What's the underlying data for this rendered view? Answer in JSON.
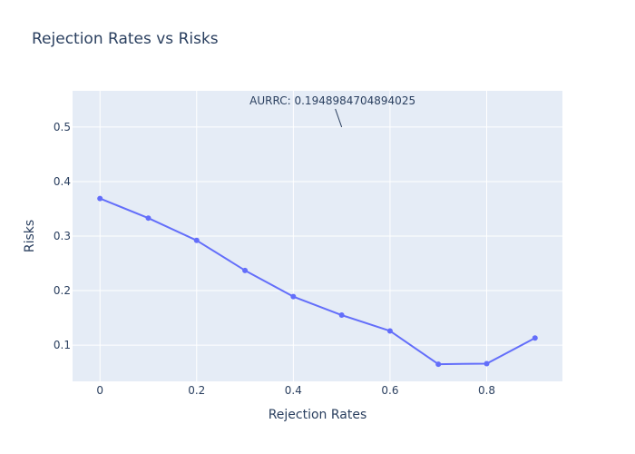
{
  "chart_data": {
    "type": "line",
    "title": "Rejection Rates vs Risks",
    "xlabel": "Rejection Rates",
    "ylabel": "Risks",
    "xlim": [
      -0.0567,
      0.9567
    ],
    "ylim": [
      0.0335,
      0.5665
    ],
    "x_ticks": [
      0,
      0.2,
      0.4,
      0.6,
      0.8
    ],
    "x_tick_labels": [
      "0",
      "0.2",
      "0.4",
      "0.6",
      "0.8"
    ],
    "y_ticks": [
      0.1,
      0.2,
      0.3,
      0.4,
      0.5
    ],
    "y_tick_labels": [
      "0.1",
      "0.2",
      "0.3",
      "0.4",
      "0.5"
    ],
    "grid": true,
    "x": [
      0,
      0.1,
      0.2,
      0.3,
      0.4,
      0.5,
      0.6,
      0.7,
      0.8,
      0.9
    ],
    "series": [
      {
        "values": [
          0.369,
          0.333,
          0.292,
          0.237,
          0.189,
          0.155,
          0.126,
          0.065,
          0.066,
          0.113
        ]
      }
    ],
    "colors": {
      "line": "#636efa",
      "plot_bg": "#e5ecf6",
      "grid": "#ffffff",
      "text": "#2a3f5f"
    },
    "annotation": {
      "text": "AURRC: 0.1948984704894025",
      "x": 0.5,
      "y": 0.5
    }
  }
}
